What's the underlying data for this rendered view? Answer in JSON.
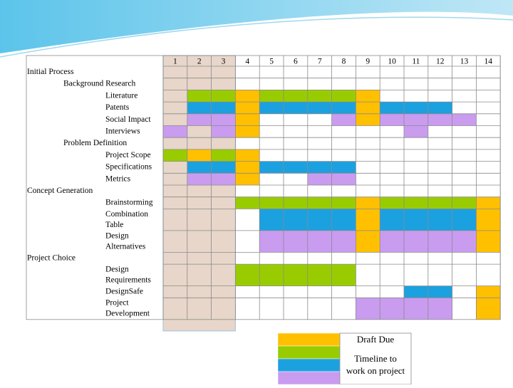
{
  "table": {
    "columns": [
      1,
      2,
      3,
      4,
      5,
      6,
      7,
      8,
      9,
      10,
      11,
      12,
      13,
      14
    ],
    "rows": [
      {
        "label": [
          "Initial Process"
        ],
        "level": 0
      },
      {
        "label": [
          "Background Research"
        ],
        "level": 1
      },
      {
        "label": [
          "Literature"
        ],
        "level": 2,
        "cells": [
          null,
          "#99cc00",
          "#99cc00",
          "#ffc000",
          "#99cc00",
          "#99cc00",
          "#99cc00",
          "#99cc00",
          "#ffc000",
          null,
          null,
          null,
          null,
          null
        ]
      },
      {
        "label": [
          "Patents"
        ],
        "level": 2,
        "cells": [
          null,
          "#1ca1e0",
          "#1ca1e0",
          "#ffc000",
          "#1ca1e0",
          "#1ca1e0",
          "#1ca1e0",
          "#1ca1e0",
          "#ffc000",
          "#1ca1e0",
          "#1ca1e0",
          "#1ca1e0",
          null,
          null
        ]
      },
      {
        "label": [
          "Social Impact"
        ],
        "level": 2,
        "cells": [
          null,
          "#c99cf0",
          "#c99cf0",
          "#ffc000",
          null,
          null,
          null,
          "#c99cf0",
          "#ffc000",
          "#c99cf0",
          "#c99cf0",
          "#c99cf0",
          "#c99cf0",
          null
        ]
      },
      {
        "label": [
          "Interviews"
        ],
        "level": 2,
        "cells": [
          "#c99cf0",
          null,
          "#c99cf0",
          "#ffc000",
          null,
          null,
          null,
          null,
          null,
          null,
          "#c99cf0",
          null,
          null,
          null
        ]
      },
      {
        "label": [
          "Problem Definition"
        ],
        "level": 1
      },
      {
        "label": [
          "Project Scope"
        ],
        "level": 2,
        "cells": [
          "#99cc00",
          "#ffc000",
          "#99cc00",
          "#ffc000",
          null,
          null,
          null,
          null,
          null,
          null,
          null,
          null,
          null,
          null
        ]
      },
      {
        "label": [
          "Specifications"
        ],
        "level": 2,
        "cells": [
          null,
          "#1ca1e0",
          "#1ca1e0",
          "#ffc000",
          "#1ca1e0",
          "#1ca1e0",
          "#1ca1e0",
          "#1ca1e0",
          null,
          null,
          null,
          null,
          null,
          null
        ]
      },
      {
        "label": [
          "Metrics"
        ],
        "level": 2,
        "cells": [
          null,
          "#c99cf0",
          "#c99cf0",
          "#ffc000",
          null,
          null,
          "#c99cf0",
          "#c99cf0",
          null,
          null,
          null,
          null,
          null,
          null
        ]
      },
      {
        "label": [
          "Concept Generation"
        ],
        "level": 0
      },
      {
        "label": [
          "Brainstorming"
        ],
        "level": 2,
        "cells": [
          null,
          null,
          null,
          "#99cc00",
          "#99cc00",
          "#99cc00",
          "#99cc00",
          "#99cc00",
          "#ffc000",
          "#99cc00",
          "#99cc00",
          "#99cc00",
          "#99cc00",
          "#ffc000"
        ]
      },
      {
        "label": [
          "Combination",
          "Table"
        ],
        "level": 2,
        "cells": [
          null,
          null,
          null,
          null,
          "#1ca1e0",
          "#1ca1e0",
          "#1ca1e0",
          "#1ca1e0",
          "#ffc000",
          "#1ca1e0",
          "#1ca1e0",
          "#1ca1e0",
          "#1ca1e0",
          "#ffc000"
        ]
      },
      {
        "label": [
          "Design",
          "Alternatives"
        ],
        "level": 2,
        "cells": [
          null,
          null,
          null,
          null,
          "#c99cf0",
          "#c99cf0",
          "#c99cf0",
          "#c99cf0",
          "#ffc000",
          "#c99cf0",
          "#c99cf0",
          "#c99cf0",
          "#c99cf0",
          "#ffc000"
        ]
      },
      {
        "label": [
          "Project Choice"
        ],
        "level": 0
      },
      {
        "label": [
          "Design",
          "Requirements"
        ],
        "level": 2,
        "cells": [
          null,
          null,
          null,
          "#99cc00",
          "#99cc00",
          "#99cc00",
          "#99cc00",
          "#99cc00",
          null,
          null,
          null,
          null,
          null,
          null
        ]
      },
      {
        "label": [
          "DesignSafe"
        ],
        "level": 2,
        "cells": [
          null,
          null,
          null,
          null,
          null,
          null,
          null,
          null,
          null,
          null,
          "#1ca1e0",
          "#1ca1e0",
          null,
          "#ffc000"
        ]
      },
      {
        "label": [
          "Project",
          "Development"
        ],
        "level": 2,
        "cells": [
          null,
          null,
          null,
          null,
          null,
          null,
          null,
          null,
          "#c99cf0",
          "#c99cf0",
          "#c99cf0",
          "#c99cf0",
          null,
          "#ffc000"
        ]
      }
    ]
  },
  "legend": {
    "swatches": [
      "#ffc000",
      "#99cc00",
      "#1ca1e0",
      "#c99cf0"
    ],
    "labels": [
      [
        "Draft Due"
      ],
      [
        "Timeline to",
        "work on project"
      ]
    ]
  }
}
